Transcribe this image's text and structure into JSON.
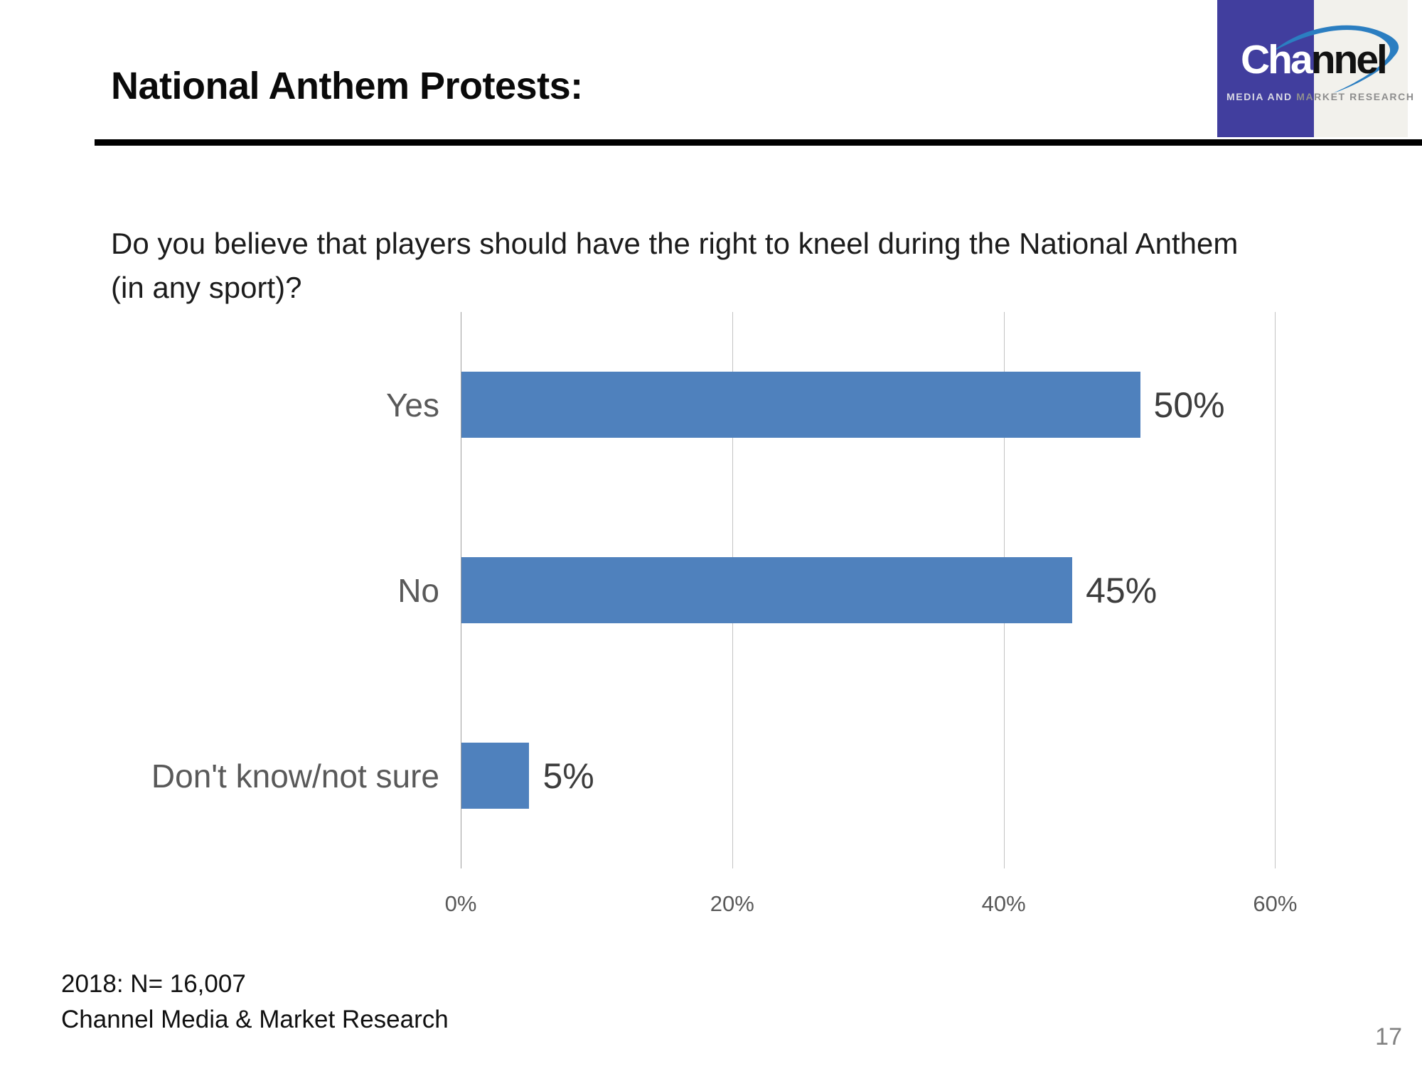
{
  "slide": {
    "title": "National Anthem Protests:",
    "question_line1": "Do you believe that players should have the right to kneel during the National Anthem",
    "question_line2": "(in any sport)?",
    "footer_line1": "2018: N= 16,007",
    "footer_line2": "Channel Media & Market Research",
    "page_number": "17"
  },
  "logo": {
    "brand_part1": "Cha",
    "brand_part2": "nnel",
    "tagline_part1": "MEDIA AND",
    "tagline_part2": " MARKET RESEARCH",
    "colors": {
      "purple": "#413E9E",
      "offwhite": "#F2F1EC",
      "swoosh_blue": "#2B7EC1"
    }
  },
  "chart_data": {
    "type": "bar",
    "orientation": "horizontal",
    "title": "",
    "xlabel": "",
    "ylabel": "",
    "categories": [
      "Yes",
      "No",
      "Don't know/not sure"
    ],
    "values": [
      50,
      45,
      5
    ],
    "value_labels": [
      "50%",
      "45%",
      "5%"
    ],
    "x_ticks": [
      "0%",
      "20%",
      "40%",
      "60%"
    ],
    "x_tick_values": [
      0,
      20,
      40,
      60
    ],
    "xlim": [
      0,
      66
    ],
    "grid": true,
    "legend": false,
    "bar_color": "#4F81BD",
    "gridline_color": "#C3C3C3",
    "axis_line_color": "#9E9E9E",
    "category_label_color": "#595959",
    "value_label_color": "#3D3D3D"
  }
}
